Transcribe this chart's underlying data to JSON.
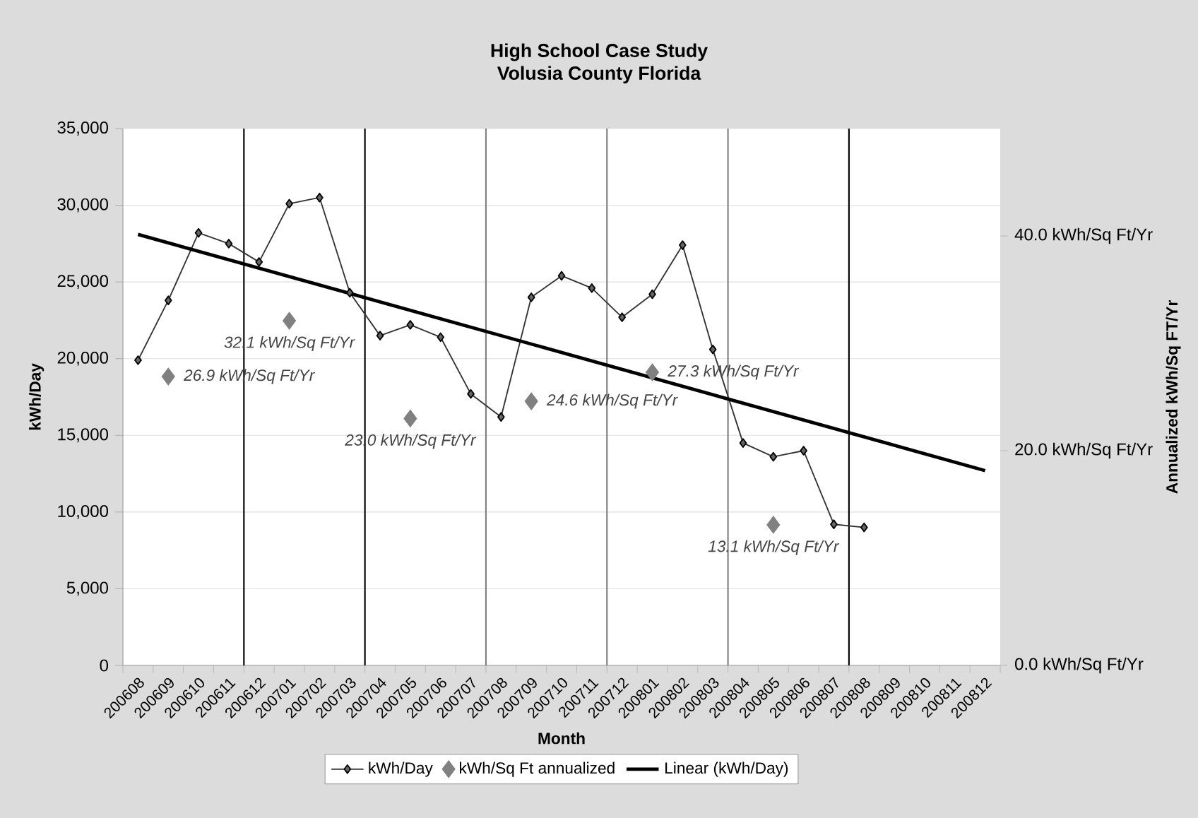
{
  "chart_data": {
    "type": "line",
    "title": "High School Case Study",
    "subtitle": "Volusia County Florida",
    "xlabel": "Month",
    "ylabel": "kWh/Day",
    "y2label": "Annualized kWh/Sq FT/Yr",
    "categories": [
      "200608",
      "200609",
      "200610",
      "200611",
      "200612",
      "200701",
      "200702",
      "200703",
      "200704",
      "200705",
      "200706",
      "200707",
      "200708",
      "200709",
      "200710",
      "200711",
      "200712",
      "200801",
      "200802",
      "200803",
      "200804",
      "200805",
      "200806",
      "200807",
      "200808",
      "200809",
      "200810",
      "200811",
      "200812"
    ],
    "ylim": [
      0,
      35000
    ],
    "yticks": [
      {
        "value": 0,
        "label": "0"
      },
      {
        "value": 5000,
        "label": "5,000"
      },
      {
        "value": 10000,
        "label": "10,000"
      },
      {
        "value": 15000,
        "label": "15,000"
      },
      {
        "value": 20000,
        "label": "20,000"
      },
      {
        "value": 25000,
        "label": "25,000"
      },
      {
        "value": 30000,
        "label": "30,000"
      },
      {
        "value": 35000,
        "label": "35,000"
      }
    ],
    "y2lim": [
      0,
      50
    ],
    "y2ticks": [
      {
        "value": 0,
        "label": "0.0 kWh/Sq Ft/Yr"
      },
      {
        "value": 20,
        "label": "20.0 kWh/Sq Ft/Yr"
      },
      {
        "value": 40,
        "label": "40.0 kWh/Sq Ft/Yr"
      }
    ],
    "grid": "y",
    "legend": "bottom",
    "series": [
      {
        "name": "kWh/Day",
        "color": "#333333",
        "marker": "diamond",
        "line_style": "solid",
        "values": [
          19900,
          23800,
          28200,
          27500,
          26300,
          30100,
          30500,
          24300,
          21500,
          22200,
          21400,
          17700,
          16200,
          24000,
          25400,
          24600,
          22700,
          24200,
          27400,
          20600,
          14500,
          13600,
          14000,
          9200,
          9000,
          null,
          null,
          null,
          null
        ]
      },
      {
        "name": "kWh/Sq Ft annualized",
        "type": "scatter",
        "axis": "y2",
        "color": "#808080",
        "marker": "diamond",
        "x": [
          "200609",
          "200701",
          "200705",
          "200709",
          "200801",
          "200805"
        ],
        "values": [
          26.9,
          32.1,
          23.0,
          24.6,
          27.3,
          13.1
        ],
        "value_labels": [
          "26.9 kWh/Sq Ft/Yr",
          "32.1 kWh/Sq Ft/Yr",
          "23.0 kWh/Sq Ft/Yr",
          "24.6 kWh/Sq Ft/Yr",
          "27.3 kWh/Sq Ft/Yr",
          "13.1 kWh/Sq Ft/Yr"
        ]
      },
      {
        "name": "Linear (kWh/Day)",
        "color": "#000000",
        "marker": "none",
        "line_style": "solid",
        "x": [
          "200608",
          "200812"
        ],
        "values": [
          28100,
          12700
        ]
      }
    ]
  }
}
